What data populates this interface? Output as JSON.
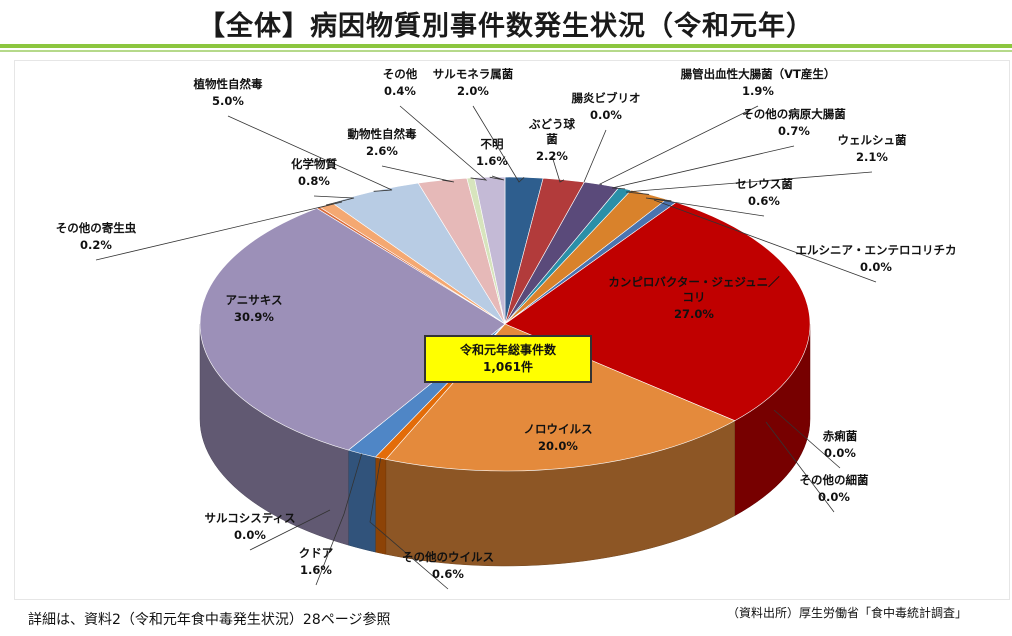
{
  "title": "【全体】病因物質別事件数発生状況（令和元年）",
  "total_box": {
    "label": "令和元年総事件数",
    "value": "1,061件"
  },
  "footer_note": "詳細は、資料2（令和元年食中毒発生状況）28ページ参照",
  "source_note": "（資料出所）厚生労働省「食中毒統計調査」",
  "chart_data": {
    "type": "pie",
    "title": "",
    "slices": [
      {
        "name": "サルモネラ属菌",
        "value": 2.0,
        "label": "2.0%",
        "color": "#2e5e8e"
      },
      {
        "name": "ぶどう球菌",
        "value": 2.2,
        "label": "2.2%",
        "color": "#b23b3b"
      },
      {
        "name": "腸炎ビブリオ",
        "value": 0.0,
        "label": "0.0%",
        "color": "#7a6a9a"
      },
      {
        "name": "腸管出血性大腸菌（VT産生）",
        "value": 1.9,
        "label": "1.9%",
        "color": "#5a4a7a"
      },
      {
        "name": "その他の病原大腸菌",
        "value": 0.7,
        "label": "0.7%",
        "color": "#2a8fa8"
      },
      {
        "name": "ウェルシュ菌",
        "value": 2.1,
        "label": "2.1%",
        "color": "#d9822b"
      },
      {
        "name": "セレウス菌",
        "value": 0.6,
        "label": "0.6%",
        "color": "#4a74b0"
      },
      {
        "name": "エルシニア・エンテロコリチカ",
        "value": 0.0,
        "label": "0.0%",
        "color": "#999999"
      },
      {
        "name": "カンピロバクター・ジェジュニ／コリ",
        "value": 27.0,
        "label": "27.0%",
        "color": "#c00000"
      },
      {
        "name": "赤痢菌",
        "value": 0.0,
        "label": "0.0%",
        "color": "#888888"
      },
      {
        "name": "その他の細菌",
        "value": 0.0,
        "label": "0.0%",
        "color": "#777777"
      },
      {
        "name": "ノロウイルス",
        "value": 20.0,
        "label": "20.0%",
        "color": "#e48a3c"
      },
      {
        "name": "その他のウイルス",
        "value": 0.6,
        "label": "0.6%",
        "color": "#e36c09"
      },
      {
        "name": "クドア",
        "value": 1.6,
        "label": "1.6%",
        "color": "#4f86c6"
      },
      {
        "name": "サルコシスティス",
        "value": 0.0,
        "label": "0.0%",
        "color": "#666666"
      },
      {
        "name": "アニサキス",
        "value": 30.9,
        "label": "30.9%",
        "color": "#9c90b8"
      },
      {
        "name": "その他の寄生虫",
        "value": 0.2,
        "label": "0.2%",
        "color": "#d96a3a"
      },
      {
        "name": "化学物質",
        "value": 0.8,
        "label": "0.8%",
        "color": "#f4a872"
      },
      {
        "name": "植物性自然毒",
        "value": 5.0,
        "label": "5.0%",
        "color": "#b8cce4"
      },
      {
        "name": "動物性自然毒",
        "value": 2.6,
        "label": "2.6%",
        "color": "#e6b9b8"
      },
      {
        "name": "その他",
        "value": 0.4,
        "label": "0.4%",
        "color": "#d7e4bd"
      },
      {
        "name": "不明",
        "value": 1.6,
        "label": "1.6%",
        "color": "#c4bad6"
      }
    ]
  }
}
